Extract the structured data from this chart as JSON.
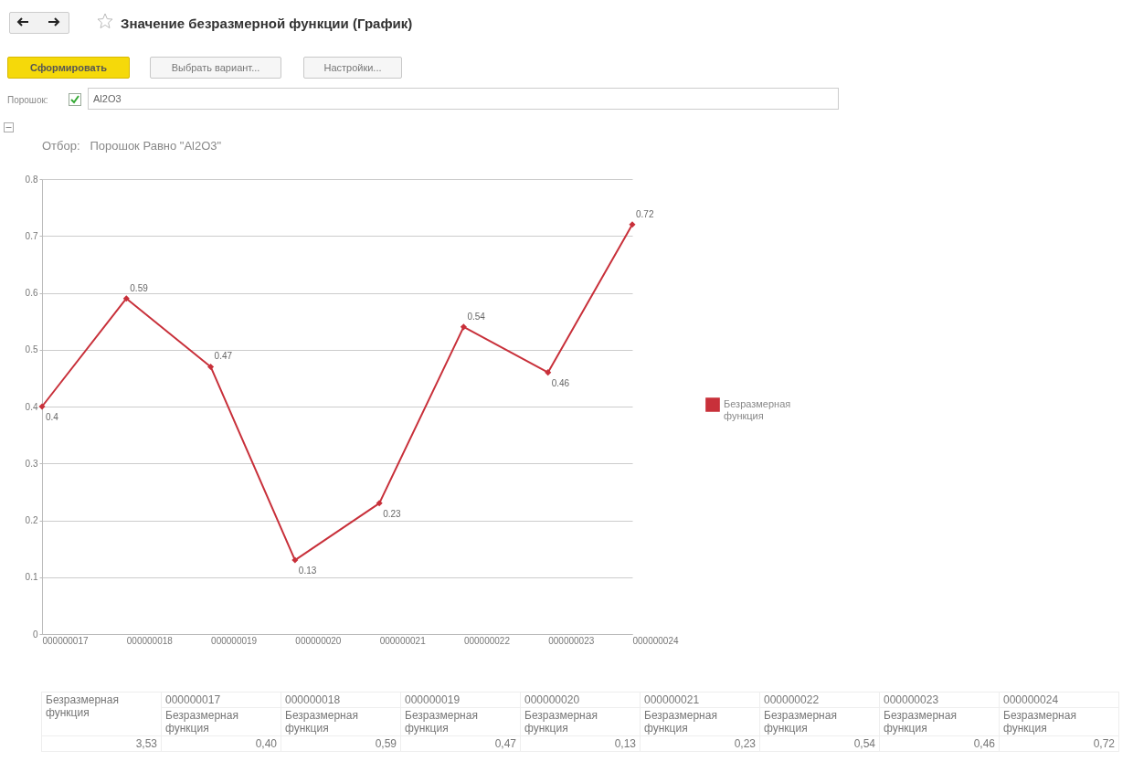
{
  "chart_data": {
    "type": "line",
    "title": "Значение безразмерной функции (График)",
    "subtitle": "Отбор:   Порошок Равно \"Al2O3\"",
    "categories": [
      "000000017",
      "000000018",
      "000000019",
      "000000020",
      "000000021",
      "000000022",
      "000000023",
      "000000024"
    ],
    "series": [
      {
        "name": "Безразмерная функция",
        "color": "#c8303a",
        "values": [
          0.4,
          0.59,
          0.47,
          0.13,
          0.23,
          0.54,
          0.46,
          0.72
        ]
      }
    ],
    "ylim": [
      0,
      0.8
    ],
    "yticks": [
      0,
      0.1,
      0.2,
      0.3,
      0.4,
      0.5,
      0.6,
      0.7,
      0.8
    ],
    "grid": "y",
    "legend": "right",
    "marker": "diamond",
    "line_style": "solid",
    "data_labels": true,
    "annotations": [
      "Сформировать",
      "Выбрать вариант...",
      "Настройки...",
      "Порошок:",
      "Al2O3",
      "3,53",
      "0,40",
      "0,59",
      "0,47",
      "0,13",
      "0,23",
      "0,54",
      "0,46",
      "0,72"
    ]
  }
}
